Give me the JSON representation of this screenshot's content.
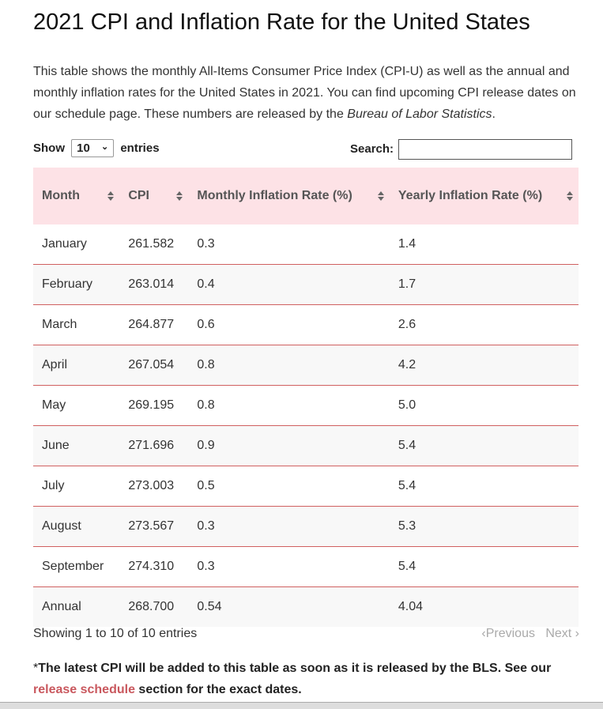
{
  "header": {
    "title": "2021 CPI and Inflation Rate for the United States"
  },
  "intro": {
    "before": "This table shows the monthly All-Items Consumer Price Index (CPI-U) as well as the annual and monthly inflation rates for the United States in 2021. You can find upcoming CPI release dates on our schedule page. These numbers are released by the ",
    "emphasis": "Bureau of Labor Statistics",
    "after": "."
  },
  "controls": {
    "show": "Show",
    "length": "10",
    "entries": "entries",
    "search": "Search:"
  },
  "table": {
    "columns": [
      "Month",
      "CPI",
      "Monthly Inflation Rate (%)",
      "Yearly Inflation Rate (%)"
    ],
    "rows": [
      [
        "January",
        "261.582",
        "0.3",
        "1.4"
      ],
      [
        "February",
        "263.014",
        "0.4",
        "1.7"
      ],
      [
        "March",
        "264.877",
        "0.6",
        "2.6"
      ],
      [
        "April",
        "267.054",
        "0.8",
        "4.2"
      ],
      [
        "May",
        "269.195",
        "0.8",
        "5.0"
      ],
      [
        "June",
        "271.696",
        "0.9",
        "5.4"
      ],
      [
        "July",
        "273.003",
        "0.5",
        "5.4"
      ],
      [
        "August",
        "273.567",
        "0.3",
        "5.3"
      ],
      [
        "September",
        "274.310",
        "0.3",
        "5.4"
      ],
      [
        "Annual",
        "268.700",
        "0.54",
        "4.04"
      ]
    ]
  },
  "pagination": {
    "info": "Showing 1 to 10 of 10 entries",
    "previous": "Previous",
    "next": "Next"
  },
  "footnote": {
    "asterisk": "*",
    "bold": "The latest CPI will be added to this table as soon as it is released by the BLS. See our ",
    "link": "release schedule",
    "end": " section for the exact dates."
  }
}
